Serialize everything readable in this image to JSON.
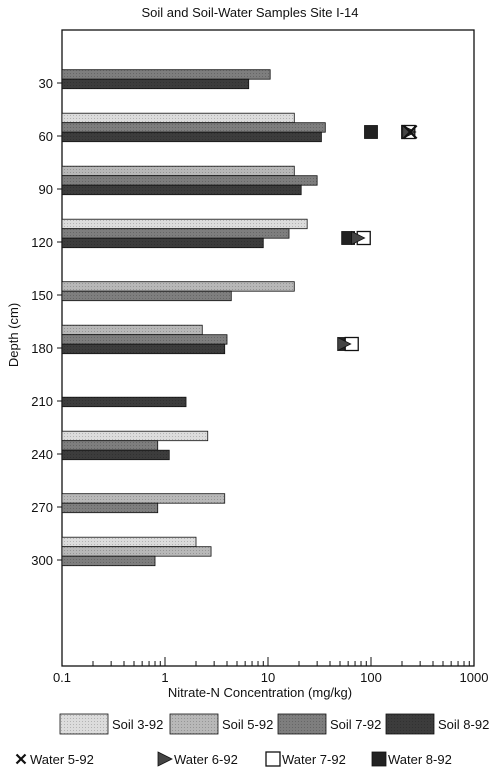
{
  "chart_data": {
    "type": "bar",
    "orientation": "horizontal",
    "title": "Soil and Soil-Water Samples Site I-14",
    "xlabel": "Nitrate-N Concentration (mg/kg)",
    "ylabel": "Depth (cm)",
    "x_scale": "log",
    "xlim": [
      0.1,
      1000
    ],
    "x_ticks": [
      "0.1",
      "1",
      "10",
      "100",
      "1000"
    ],
    "ylim": [
      0,
      360
    ],
    "y_ticks": [
      "30",
      "60",
      "90",
      "120",
      "150",
      "180",
      "210",
      "240",
      "270",
      "300"
    ],
    "y_tick_values": [
      30,
      60,
      90,
      120,
      150,
      180,
      210,
      240,
      270,
      300
    ],
    "legend_position": "bottom",
    "bar_series": [
      {
        "name": "Soil 3-92",
        "color": "#dcdcdc",
        "points": [
          {
            "depth": 60,
            "value": 18
          },
          {
            "depth": 120,
            "value": 24
          },
          {
            "depth": 240,
            "value": 2.6
          },
          {
            "depth": 300,
            "value": 2
          }
        ]
      },
      {
        "name": "Soil 5-92",
        "color": "#b8b8b8",
        "points": [
          {
            "depth": 90,
            "value": 18
          },
          {
            "depth": 150,
            "value": 18
          },
          {
            "depth": 180,
            "value": 2.3
          },
          {
            "depth": 270,
            "value": 3.8
          },
          {
            "depth": 300,
            "value": 2.8
          }
        ]
      },
      {
        "name": "Soil 7-92",
        "color": "#7e7e7e",
        "points": [
          {
            "depth": 30,
            "value": 10.5
          },
          {
            "depth": 60,
            "value": 36
          },
          {
            "depth": 90,
            "value": 30
          },
          {
            "depth": 120,
            "value": 16
          },
          {
            "depth": 150,
            "value": 4.4
          },
          {
            "depth": 180,
            "value": 4
          },
          {
            "depth": 240,
            "value": 0.85
          },
          {
            "depth": 270,
            "value": 0.85
          },
          {
            "depth": 300,
            "value": 0.8
          }
        ]
      },
      {
        "name": "Soil 8-92",
        "color": "#3c3c3c",
        "points": [
          {
            "depth": 30,
            "value": 6.5
          },
          {
            "depth": 60,
            "value": 33
          },
          {
            "depth": 90,
            "value": 21
          },
          {
            "depth": 120,
            "value": 9
          },
          {
            "depth": 180,
            "value": 3.8
          },
          {
            "depth": 210,
            "value": 1.6
          },
          {
            "depth": 240,
            "value": 1.1
          }
        ]
      }
    ],
    "marker_series": [
      {
        "name": "Water 5-92",
        "marker": "x",
        "color": "#111111",
        "points": [
          {
            "depth": 60,
            "value": 240
          }
        ]
      },
      {
        "name": "Water 6-92",
        "marker": "triangle",
        "color": "#444444",
        "points": [
          {
            "depth": 60,
            "value": 235
          },
          {
            "depth": 120,
            "value": 75
          },
          {
            "depth": 180,
            "value": 55
          }
        ]
      },
      {
        "name": "Water 7-92",
        "marker": "open-square",
        "color": "#111111",
        "points": [
          {
            "depth": 60,
            "value": 230
          },
          {
            "depth": 120,
            "value": 85
          },
          {
            "depth": 180,
            "value": 65
          }
        ]
      },
      {
        "name": "Water 8-92",
        "marker": "filled-square",
        "color": "#222222",
        "points": [
          {
            "depth": 60,
            "value": 100
          },
          {
            "depth": 120,
            "value": 60
          },
          {
            "depth": 180,
            "value": 55
          }
        ]
      }
    ]
  }
}
